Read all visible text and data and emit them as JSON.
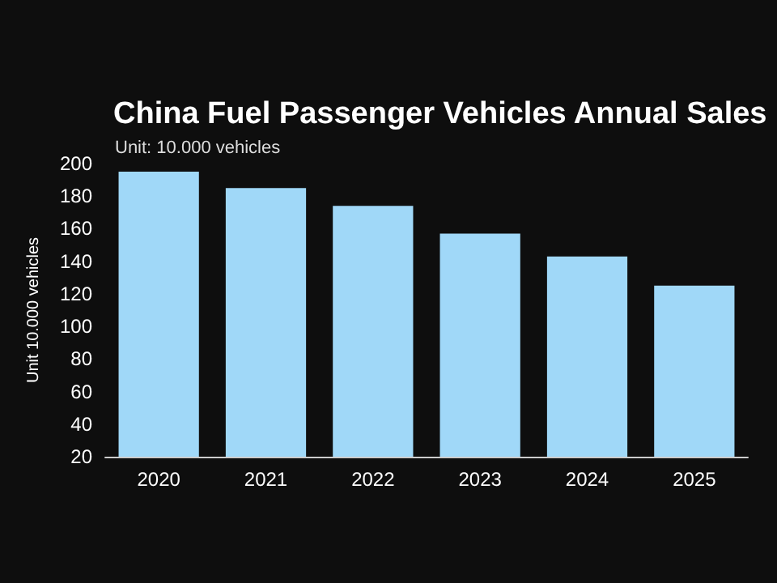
{
  "chart_data": {
    "type": "bar",
    "title": "China Fuel Passenger Vehicles Annual Sales",
    "subtitle": "Unit: 10.000 vehicles",
    "ylabel": "Unit 10.000 vehicles",
    "categories": [
      "2020",
      "2021",
      "2022",
      "2023",
      "2024",
      "2025"
    ],
    "values": [
      195,
      185,
      174,
      157,
      143,
      125
    ],
    "color": "#a0d8f8",
    "ylim": [
      20,
      200
    ],
    "yticks": [
      20,
      40,
      60,
      80,
      100,
      120,
      140,
      160,
      180,
      200
    ],
    "grid": false
  }
}
